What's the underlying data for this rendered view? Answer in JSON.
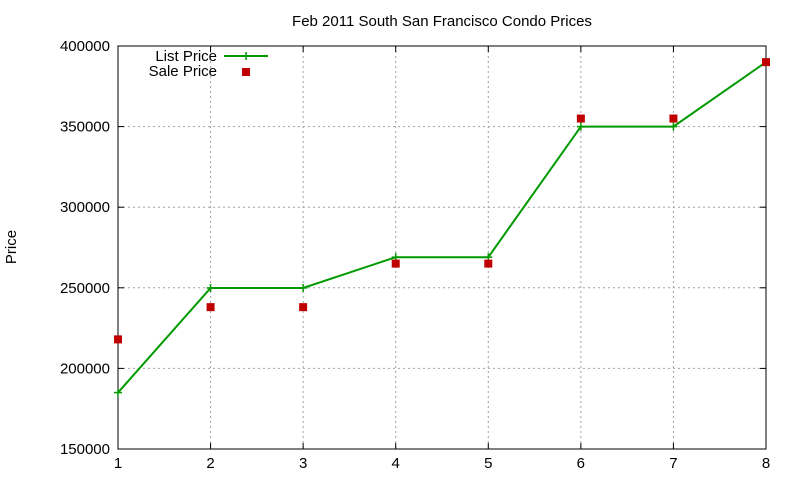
{
  "chart_data": {
    "type": "line",
    "title": "Feb 2011 South San Francisco Condo Prices",
    "xlabel": "",
    "ylabel": "Price",
    "x": [
      1,
      2,
      3,
      4,
      5,
      6,
      7,
      8
    ],
    "xlim": [
      1,
      8
    ],
    "ylim": [
      150000,
      400000
    ],
    "x_ticks": [
      "1",
      "2",
      "3",
      "4",
      "5",
      "6",
      "7",
      "8"
    ],
    "y_ticks": [
      "150000",
      "200000",
      "250000",
      "300000",
      "350000",
      "400000"
    ],
    "grid": true,
    "legend_position": "top-left",
    "series": [
      {
        "name": "List Price",
        "style": "line-with-plus-markers",
        "color": "#009900",
        "values": [
          185000,
          249900,
          249900,
          269000,
          269000,
          350000,
          350000,
          390000
        ]
      },
      {
        "name": "Sale Price",
        "style": "square-points",
        "color": "#c00000",
        "values": [
          218000,
          238000,
          238000,
          265000,
          265000,
          355000,
          355000,
          390000
        ]
      }
    ]
  }
}
